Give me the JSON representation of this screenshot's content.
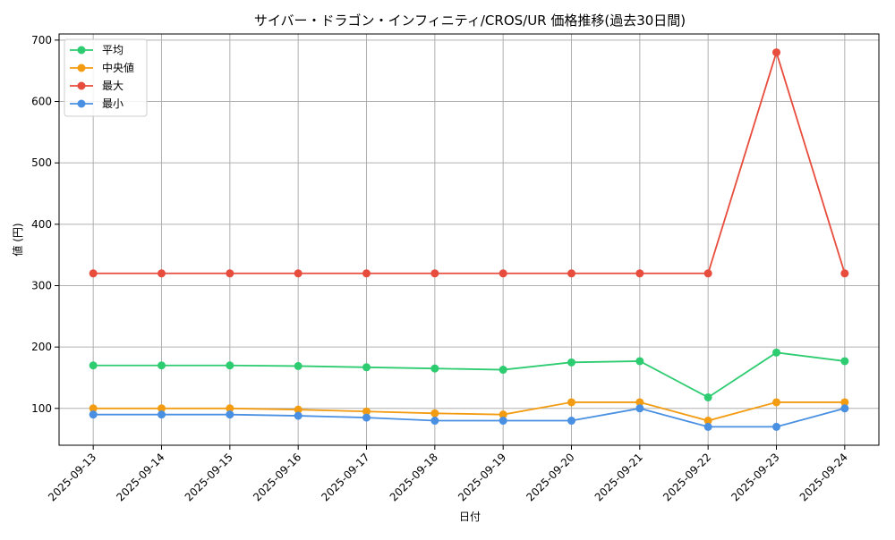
{
  "chart_data": {
    "type": "line",
    "title": "サイバー・ドラゴン・インフィニティ/CROS/UR 価格推移(過去30日間)",
    "xlabel": "日付",
    "ylabel": "値 (円)",
    "categories": [
      "2025-09-13",
      "2025-09-14",
      "2025-09-15",
      "2025-09-16",
      "2025-09-17",
      "2025-09-18",
      "2025-09-19",
      "2025-09-20",
      "2025-09-21",
      "2025-09-22",
      "2025-09-23",
      "2025-09-24"
    ],
    "ylim": [
      40,
      710
    ],
    "yticks": [
      100,
      200,
      300,
      400,
      500,
      600,
      700
    ],
    "grid": true,
    "legend_position": "top-left",
    "series": [
      {
        "name": "平均",
        "color": "#2ecc71",
        "values": [
          170,
          170,
          170,
          169,
          167,
          165,
          163,
          175,
          177,
          118,
          191,
          177
        ]
      },
      {
        "name": "中央値",
        "color": "#f39c12",
        "values": [
          100,
          100,
          100,
          98,
          95,
          92,
          90,
          110,
          110,
          80,
          110,
          110
        ]
      },
      {
        "name": "最大",
        "color": "#e74c3c",
        "values": [
          320,
          320,
          320,
          320,
          320,
          320,
          320,
          320,
          320,
          320,
          680,
          320
        ]
      },
      {
        "name": "最小",
        "color": "#4a90e2",
        "values": [
          90,
          90,
          90,
          88,
          85,
          80,
          80,
          80,
          100,
          70,
          70,
          100
        ]
      }
    ]
  }
}
